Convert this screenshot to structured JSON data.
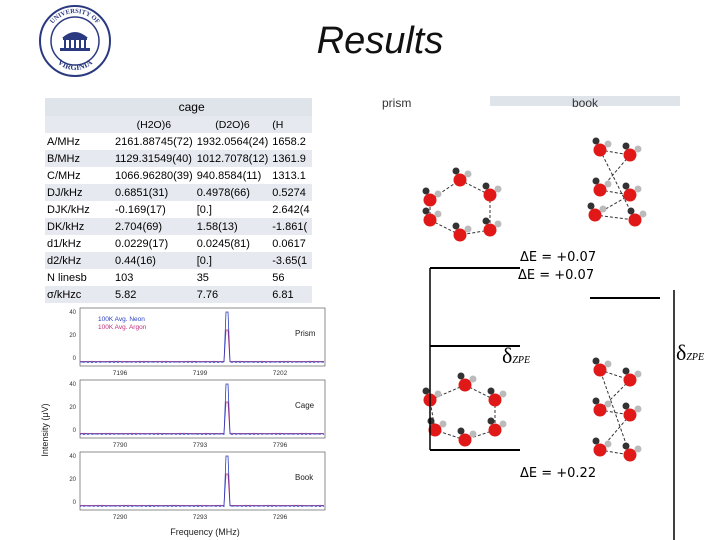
{
  "slide": {
    "title": "Results",
    "logo_text": "UNIVERSITY OF VIRGINIA"
  },
  "table": {
    "group_header": "cage",
    "overlay_prism": "prism",
    "overlay_book": "book",
    "col_headers": [
      "(H2O)6",
      "(D2O)6",
      "(H"
    ],
    "rows": [
      {
        "label": "A/MHz",
        "v1": "2161.88745(72)",
        "v2": "1932.0564(24)",
        "v3": "1658.2"
      },
      {
        "label": "B/MHz",
        "v1": "1129.31549(40)",
        "v2": "1012.7078(12)",
        "v3": "1361.9"
      },
      {
        "label": "C/MHz",
        "v1": "1066.96280(39)",
        "v2": "940.8584(11)",
        "v3": "1313.1"
      },
      {
        "label": "DJ/kHz",
        "v1": "0.6851(31)",
        "v2": "0.4978(66)",
        "v3": "0.5274"
      },
      {
        "label": "DJK/kHz",
        "v1": "-0.169(17)",
        "v2": "[0.]",
        "v3": "2.642(4"
      },
      {
        "label": "DK/kHz",
        "v1": "2.704(69)",
        "v2": "1.58(13)",
        "v3": "-1.861("
      },
      {
        "label": "d1/kHz",
        "v1": "0.0229(17)",
        "v2": "0.0245(81)",
        "v3": "0.0617"
      },
      {
        "label": "d2/kHz",
        "v1": "0.44(16)",
        "v2": "[0.]",
        "v3": "-3.65(1"
      },
      {
        "label": "N linesb",
        "v1": "103",
        "v2": "35",
        "v3": "56"
      },
      {
        "label": "σ/kHzc",
        "v1": "5.82",
        "v2": "7.76",
        "v3": "6.81"
      }
    ]
  },
  "spectrum": {
    "ylabel": "Intensity (μV)",
    "xlabel": "Frequency (MHz)",
    "legend": [
      "100K Avg. Neon",
      "100K Avg. Argon"
    ],
    "colors": {
      "neon": "#2a3fbf",
      "argon": "#c0307a"
    },
    "panels": [
      {
        "name": "Prism",
        "ticks": [
          "7196",
          "7199",
          "7202"
        ],
        "yticks": [
          "40",
          "20",
          "0"
        ]
      },
      {
        "name": "Cage",
        "ticks": [
          "7790",
          "7793",
          "7796"
        ],
        "yticks": [
          "40",
          "20",
          "0"
        ]
      },
      {
        "name": "Book",
        "ticks": [
          "7290",
          "7293",
          "7296"
        ],
        "yticks": [
          "40",
          "20",
          "0"
        ]
      }
    ]
  },
  "energy": {
    "de1": "ΔE = +0.07",
    "de2": "ΔE = +0.07",
    "zpe_symbol": "δ",
    "zpe_sub": "ZPE",
    "de3": "ΔE = +0.22"
  }
}
